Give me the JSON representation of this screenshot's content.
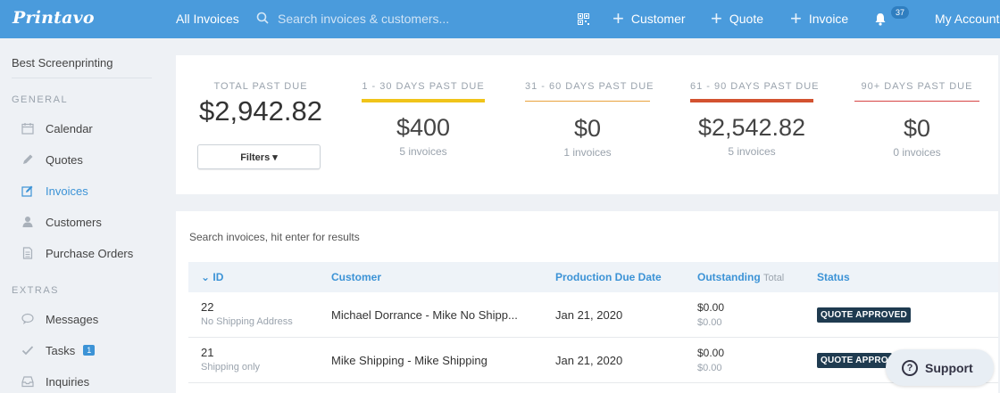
{
  "header": {
    "logo": "Printavo",
    "all_invoices": "All Invoices",
    "search_placeholder": "Search invoices & customers...",
    "actions": {
      "customer": "Customer",
      "quote": "Quote",
      "invoice": "Invoice"
    },
    "notification_count": "37",
    "account": "My Account"
  },
  "sidebar": {
    "company": "Best Screenprinting",
    "general_label": "GENERAL",
    "general_items": [
      {
        "label": "Calendar",
        "icon": "calendar-icon"
      },
      {
        "label": "Quotes",
        "icon": "pencil-icon"
      },
      {
        "label": "Invoices",
        "icon": "edit-icon"
      },
      {
        "label": "Customers",
        "icon": "user-icon"
      },
      {
        "label": "Purchase Orders",
        "icon": "document-icon"
      }
    ],
    "extras_label": "EXTRAS",
    "extras_items": [
      {
        "label": "Messages",
        "icon": "chat-icon"
      },
      {
        "label": "Tasks",
        "icon": "check-icon",
        "badge": "1"
      },
      {
        "label": "Inquiries",
        "icon": "inbox-icon"
      }
    ]
  },
  "summary": {
    "total": {
      "label": "TOTAL PAST DUE",
      "amount": "$2,942.82"
    },
    "filters_label": "Filters",
    "buckets": [
      {
        "label": "1 - 30 DAYS PAST DUE",
        "amount": "$400",
        "count": "5 invoices",
        "color": "#f0c419"
      },
      {
        "label": "31 - 60 DAYS PAST DUE",
        "amount": "$0",
        "count": "1 invoices",
        "color": "#e8a33d"
      },
      {
        "label": "61 - 90 DAYS PAST DUE",
        "amount": "$2,542.82",
        "count": "5 invoices",
        "color": "#d35230"
      },
      {
        "label": "90+ DAYS PAST DUE",
        "amount": "$0",
        "count": "0 invoices",
        "color": "#d64545"
      }
    ]
  },
  "invoices": {
    "search_hint": "Search invoices, hit enter for results",
    "columns": {
      "id": "ID",
      "customer": "Customer",
      "due_date": "Production Due Date",
      "outstanding": "Outstanding",
      "outstanding_sub": "Total",
      "status": "Status"
    },
    "rows": [
      {
        "id": "22",
        "note": "No Shipping Address",
        "customer": "Michael Dorrance - Mike No Shipp...",
        "due_date": "Jan 21, 2020",
        "outstanding": "$0.00",
        "total": "$0.00",
        "status": "QUOTE APPROVED"
      },
      {
        "id": "21",
        "note": "Shipping only",
        "customer": "Mike Shipping - Mike Shipping",
        "due_date": "Jan 21, 2020",
        "outstanding": "$0.00",
        "total": "$0.00",
        "status": "QUOTE APPRO"
      }
    ]
  },
  "support_label": "Support"
}
